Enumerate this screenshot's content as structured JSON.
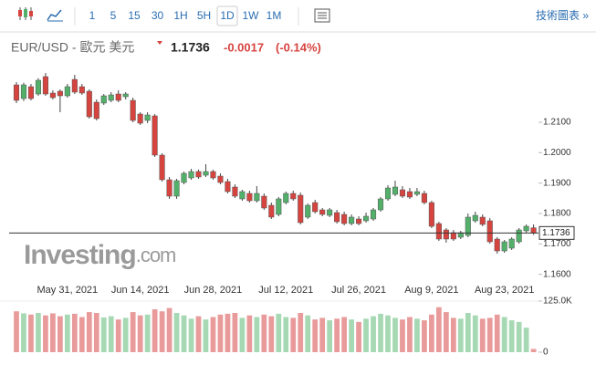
{
  "toolbar": {
    "intervals": [
      "1",
      "5",
      "15",
      "30",
      "1H",
      "5H",
      "1D",
      "1W",
      "1M"
    ],
    "selected": "1D",
    "link": "技術圖表 »"
  },
  "header": {
    "name": "EUR/USD - 歐元 美元",
    "price": "1.1736",
    "change": "-0.0017",
    "change_pct": "(-0.14%)"
  },
  "watermark": [
    "Investing",
    ".com"
  ],
  "chart_data": {
    "type": "candlestick",
    "categories": [
      null,
      null,
      null,
      null,
      null,
      null,
      null,
      "May 31, 2021",
      null,
      null,
      null,
      null,
      null,
      null,
      null,
      null,
      null,
      "Jun 14, 2021",
      null,
      null,
      null,
      null,
      null,
      null,
      null,
      null,
      null,
      "Jun 28, 2021",
      null,
      null,
      null,
      null,
      null,
      null,
      null,
      null,
      null,
      "Jul 12, 2021",
      null,
      null,
      null,
      null,
      null,
      null,
      null,
      null,
      null,
      "Jul 26, 2021",
      null,
      null,
      null,
      null,
      null,
      null,
      null,
      null,
      null,
      "Aug 9, 2021",
      null,
      null,
      null,
      null,
      null,
      null,
      null,
      null,
      null,
      "Aug 23, 2021",
      null,
      null,
      null,
      null
    ],
    "open": [
      1.2223,
      1.2178,
      1.2217,
      1.2193,
      1.225,
      1.2196,
      1.2202,
      1.2187,
      1.2241,
      1.2217,
      1.2202,
      1.2166,
      1.2163,
      1.2172,
      1.2193,
      1.2184,
      1.2172,
      1.2127,
      1.2106,
      1.2121,
      1.1992,
      1.1911,
      1.1857,
      1.1902,
      1.1917,
      1.1938,
      1.1926,
      1.1938,
      1.1923,
      1.1905,
      1.1887,
      1.1848,
      1.1866,
      1.1842,
      1.1857,
      1.1827,
      1.1797,
      1.1836,
      1.1866,
      1.186,
      1.1788,
      1.1836,
      1.1812,
      1.1794,
      1.1803,
      1.1797,
      1.1767,
      1.1782,
      1.1776,
      1.1782,
      1.1812,
      1.1848,
      1.1863,
      1.1878,
      1.1872,
      1.1863,
      1.1866,
      1.1836,
      1.1767,
      1.1746,
      1.1737,
      1.1722,
      1.1728,
      1.1776,
      1.1788,
      1.1776,
      1.1716,
      1.1677,
      1.1686,
      1.1707,
      1.1743,
      1.1753
    ],
    "high": [
      1.2232,
      1.223,
      1.2226,
      1.2245,
      1.2262,
      1.2205,
      1.2208,
      1.2226,
      1.2256,
      1.2226,
      1.2208,
      1.2175,
      1.2193,
      1.2199,
      1.2205,
      1.2199,
      1.2181,
      1.2133,
      1.2133,
      1.2127,
      1.1998,
      1.192,
      1.1914,
      1.1938,
      1.1947,
      1.1944,
      1.1962,
      1.1944,
      1.1932,
      1.1914,
      1.1896,
      1.1878,
      1.1875,
      1.189,
      1.1866,
      1.1836,
      1.1854,
      1.1872,
      1.1875,
      1.1869,
      1.1833,
      1.1845,
      1.1818,
      1.1818,
      1.1812,
      1.1806,
      1.1797,
      1.1791,
      1.1803,
      1.1818,
      1.1854,
      1.1893,
      1.1908,
      1.189,
      1.1884,
      1.1884,
      1.1875,
      1.1842,
      1.1773,
      1.1752,
      1.1746,
      1.1743,
      1.18,
      1.1806,
      1.1797,
      1.1785,
      1.1722,
      1.1713,
      1.1722,
      1.1752,
      1.1764,
      1.1764
    ],
    "low": [
      1.2163,
      1.217,
      1.2172,
      1.2187,
      1.2187,
      1.2175,
      1.2133,
      1.2181,
      1.2193,
      1.219,
      1.2112,
      1.2106,
      1.2157,
      1.2166,
      1.2166,
      1.2175,
      1.21,
      1.2091,
      1.2097,
      1.1986,
      1.1905,
      1.1848,
      1.1848,
      1.1896,
      1.1911,
      1.1914,
      1.192,
      1.1911,
      1.1896,
      1.1866,
      1.1851,
      1.1842,
      1.1836,
      1.1836,
      1.1812,
      1.1782,
      1.1791,
      1.183,
      1.1842,
      1.1764,
      1.1782,
      1.18,
      1.1791,
      1.1788,
      1.1767,
      1.1761,
      1.1761,
      1.1761,
      1.177,
      1.1776,
      1.1806,
      1.1842,
      1.1857,
      1.1851,
      1.1848,
      1.1857,
      1.183,
      1.1752,
      1.171,
      1.1704,
      1.171,
      1.1716,
      1.1722,
      1.177,
      1.1758,
      1.1701,
      1.1668,
      1.1671,
      1.168,
      1.1701,
      1.1737,
      1.173
    ],
    "close": [
      1.2172,
      1.2223,
      1.2178,
      1.2238,
      1.2193,
      1.2181,
      1.2187,
      1.2217,
      1.2199,
      1.2196,
      1.2118,
      1.2112,
      1.2187,
      1.219,
      1.2172,
      1.2193,
      1.2106,
      1.2097,
      1.2124,
      1.1992,
      1.1911,
      1.1857,
      1.1908,
      1.1932,
      1.1938,
      1.192,
      1.1938,
      1.1917,
      1.1902,
      1.1872,
      1.1857,
      1.1872,
      1.1842,
      1.1866,
      1.1818,
      1.1788,
      1.1848,
      1.1866,
      1.1848,
      1.177,
      1.1827,
      1.1806,
      1.1797,
      1.1812,
      1.1773,
      1.1767,
      1.1788,
      1.1767,
      1.1791,
      1.1812,
      1.1848,
      1.1884,
      1.1887,
      1.1857,
      1.1854,
      1.1872,
      1.1836,
      1.1758,
      1.1716,
      1.1716,
      1.1716,
      1.1737,
      1.1788,
      1.1794,
      1.1764,
      1.1707,
      1.1677,
      1.1707,
      1.1716,
      1.1746,
      1.1758,
      1.1736
    ],
    "volume": [
      100000,
      95000,
      92000,
      96000,
      90000,
      95000,
      88000,
      92000,
      94000,
      86000,
      98000,
      96000,
      85000,
      88000,
      80000,
      84000,
      98000,
      90000,
      92000,
      105000,
      100000,
      108000,
      96000,
      90000,
      82000,
      88000,
      80000,
      86000,
      92000,
      94000,
      96000,
      84000,
      90000,
      86000,
      92000,
      88000,
      94000,
      86000,
      84000,
      96000,
      90000,
      80000,
      84000,
      78000,
      82000,
      86000,
      80000,
      74000,
      82000,
      88000,
      94000,
      90000,
      84000,
      80000,
      86000,
      82000,
      78000,
      92000,
      110000,
      98000,
      84000,
      82000,
      96000,
      90000,
      82000,
      84000,
      92000,
      86000,
      78000,
      74000,
      60000,
      8000
    ],
    "last": 1.1736,
    "ylim": [
      1.1572,
      1.2382
    ],
    "yticks": [
      {
        "value": 1.16,
        "label": "1.1600"
      },
      {
        "value": 1.17,
        "label": "1.1700"
      },
      {
        "value": 1.18,
        "label": "1.1800"
      },
      {
        "value": 1.19,
        "label": "1.1900"
      },
      {
        "value": 1.2,
        "label": "1.2000"
      },
      {
        "value": 1.21,
        "label": "1.2100"
      }
    ],
    "volume_lim": [
      0,
      125000
    ],
    "volume_ticks": [
      0,
      {
        "value": 125000,
        "label": "125.0K"
      }
    ],
    "up_color": "#53b06a",
    "down_color": "#d6443f",
    "volume_up_color": "#a6d9b3",
    "volume_down_color": "#e99b9b",
    "grid": false
  }
}
